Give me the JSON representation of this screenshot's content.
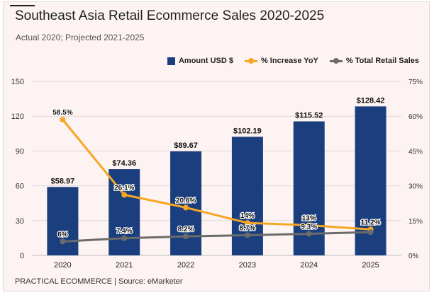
{
  "header": {
    "title": "Southeast Asia Retail Ecommerce Sales 2020-2025",
    "subtitle": "Actual 2020; Projected 2021-2025"
  },
  "footer": {
    "source": "PRACTICAL ECOMMERCE | Source: eMarketer"
  },
  "legend": [
    {
      "label": "Amount USD $",
      "color": "#1b3f7e",
      "kind": "bar"
    },
    {
      "label": "% Increase YoY",
      "color": "#f5a623",
      "kind": "line"
    },
    {
      "label": "% Total Retail Sales",
      "color": "#6b6b6b",
      "kind": "line"
    }
  ],
  "chart_data": {
    "type": "bar",
    "categories": [
      "2020",
      "2021",
      "2022",
      "2023",
      "2024",
      "2025"
    ],
    "series": [
      {
        "name": "Amount USD $",
        "type": "bar",
        "axis": "left",
        "color": "#1b3f7e",
        "values": [
          58.97,
          74.36,
          89.67,
          102.19,
          115.52,
          128.42
        ],
        "labels": [
          "$58.97",
          "$74.36",
          "$89.67",
          "$102.19",
          "$115.52",
          "$128.42"
        ]
      },
      {
        "name": "% Increase YoY",
        "type": "line",
        "axis": "right",
        "color": "#f5a623",
        "values": [
          58.5,
          26.1,
          20.6,
          14,
          13,
          11.2
        ],
        "labels": [
          "58.5%",
          "26.1%",
          "20.6%",
          "14%",
          "13%",
          "11.2%"
        ]
      },
      {
        "name": "% Total Retail Sales",
        "type": "line",
        "axis": "right",
        "color": "#6b6b6b",
        "values": [
          6,
          7.4,
          8.2,
          8.7,
          9.3,
          10
        ],
        "labels": [
          "6%",
          "7.4%",
          "8.2%",
          "8.7%",
          "9.3%",
          ""
        ]
      }
    ],
    "y_left": {
      "min": 0,
      "max": 150,
      "ticks": [
        "0",
        "30",
        "60",
        "90",
        "120",
        "150"
      ]
    },
    "y_right": {
      "min": 0,
      "max": 75,
      "ticks": [
        "0%",
        "15%",
        "30%",
        "45%",
        "60%",
        "75%"
      ]
    },
    "grid": true,
    "legend_position": "top-right"
  }
}
